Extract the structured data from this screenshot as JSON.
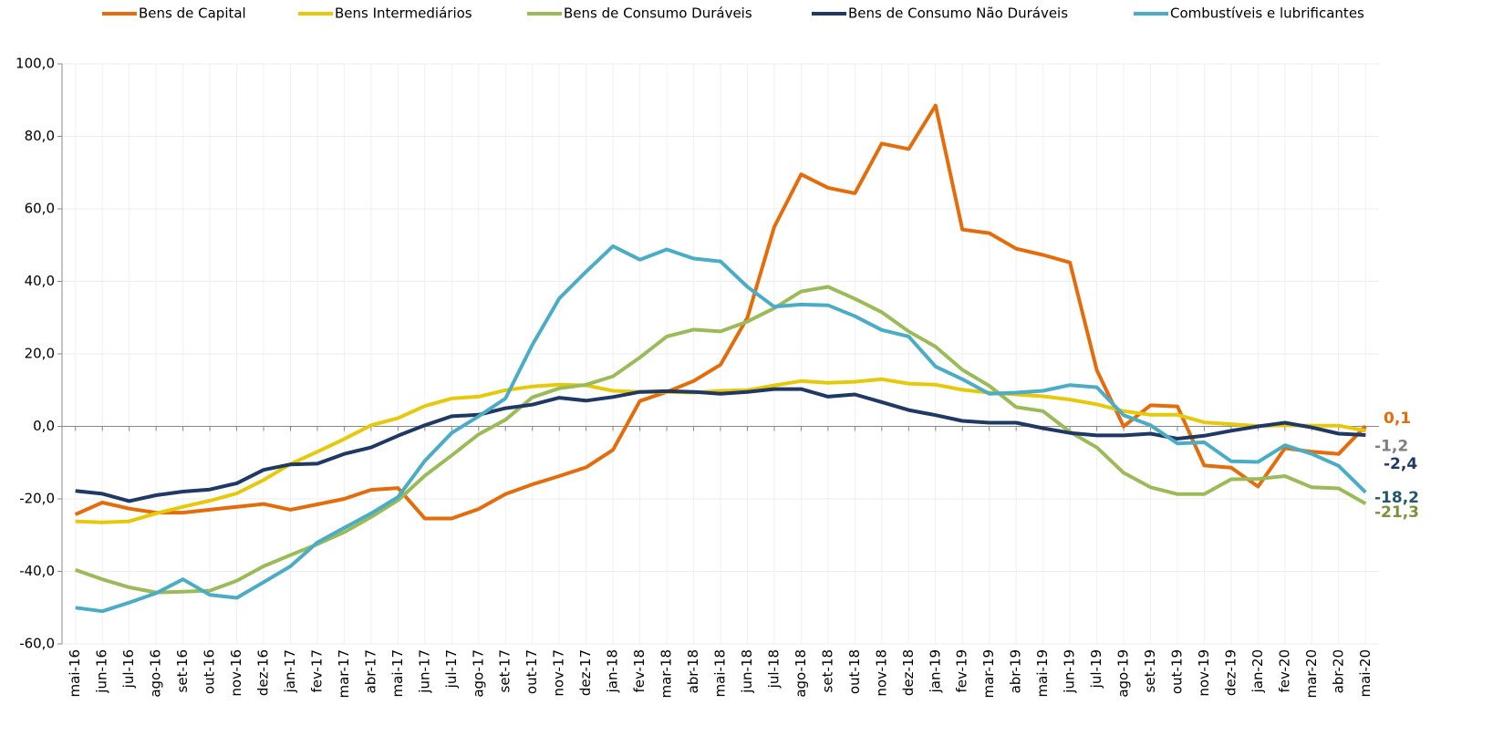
{
  "chart_data": {
    "type": "line",
    "categories": [
      "mai-16",
      "jun-16",
      "jul-16",
      "ago-16",
      "set-16",
      "out-16",
      "nov-16",
      "dez-16",
      "jan-17",
      "fev-17",
      "mar-17",
      "abr-17",
      "mai-17",
      "jun-17",
      "jul-17",
      "ago-17",
      "set-17",
      "out-17",
      "nov-17",
      "dez-17",
      "jan-18",
      "fev-18",
      "mar-18",
      "abr-18",
      "mai-18",
      "jun-18",
      "jul-18",
      "ago-18",
      "set-18",
      "out-18",
      "nov-18",
      "dez-18",
      "jan-19",
      "fev-19",
      "mar-19",
      "abr-19",
      "mai-19",
      "jun-19",
      "jul-19",
      "ago-19",
      "set-19",
      "out-19",
      "nov-19",
      "dez-19",
      "jan-20",
      "fev-20",
      "mar-20",
      "abr-20",
      "mai-20"
    ],
    "series": [
      {
        "name": "Bens de Capital",
        "color": "#e46c0a",
        "label_color": "#e46c0a",
        "values": [
          -24.3,
          -21,
          -22.7,
          -23.8,
          -23.8,
          -23,
          -22.2,
          -21.4,
          -23,
          -21.5,
          -20,
          -17.5,
          -17,
          -25.4,
          -25.4,
          -22.8,
          -18.7,
          -16,
          -13.7,
          -11.3,
          -6.5,
          7,
          9.5,
          12.5,
          17,
          30,
          55,
          69.5,
          65.8,
          64.3,
          78,
          76.5,
          88.5,
          54.3,
          53.3,
          49,
          47.3,
          45.2,
          15.5,
          0,
          5.8,
          5.5,
          -10.8,
          -11.4,
          -16.6,
          -6,
          -7,
          -7.6,
          0.1
        ],
        "value_labels": [
          null,
          null,
          null,
          null,
          null,
          null,
          null,
          null,
          null,
          null,
          null,
          null,
          null,
          null,
          null,
          null,
          null,
          null,
          null,
          null,
          null,
          null,
          null,
          null,
          null,
          null,
          null,
          null,
          null,
          null,
          null,
          null,
          null,
          null,
          null,
          null,
          null,
          null,
          null,
          null,
          null,
          null,
          null,
          null,
          null,
          null,
          null,
          null,
          "0,1"
        ]
      },
      {
        "name": "Bens Intermediários",
        "color": "#e6c90a",
        "label_color": "#7f7f7f",
        "values": [
          -26.2,
          -26.5,
          -26.2,
          -24,
          -22.2,
          -20.5,
          -18.5,
          -14.8,
          -10.4,
          -7,
          -3.5,
          0.3,
          2.3,
          5.6,
          7.7,
          8.2,
          10,
          11,
          11.5,
          11.3,
          9.8,
          9.5,
          9.5,
          9.3,
          9.8,
          10,
          11.3,
          12.5,
          12,
          12.3,
          13,
          11.8,
          11.5,
          10.1,
          9.3,
          8.8,
          8.3,
          7.4,
          6.1,
          4.2,
          3.2,
          3.2,
          1.1,
          0.6,
          0.1,
          0.3,
          0.2,
          0.2,
          -1.2
        ],
        "value_labels": [
          null,
          null,
          null,
          null,
          null,
          null,
          null,
          null,
          null,
          null,
          null,
          null,
          null,
          null,
          null,
          null,
          null,
          null,
          null,
          null,
          null,
          null,
          null,
          null,
          null,
          null,
          null,
          null,
          null,
          null,
          null,
          null,
          null,
          null,
          null,
          null,
          null,
          null,
          null,
          null,
          null,
          null,
          null,
          null,
          null,
          null,
          null,
          null,
          "-1,2"
        ]
      },
      {
        "name": "Bens de Consumo Duráveis",
        "color": "#9bbb59",
        "label_color": "#77933c",
        "values": [
          -39.6,
          -42.2,
          -44.4,
          -45.8,
          -45.6,
          -45.3,
          -42.6,
          -38.6,
          -35.5,
          -32.5,
          -29.2,
          -25,
          -20.4,
          -13.6,
          -8,
          -2.2,
          1.8,
          8,
          10.5,
          11.5,
          13.8,
          19,
          24.8,
          26.7,
          26.2,
          28.9,
          32.6,
          37.2,
          38.5,
          35.2,
          31.5,
          26.2,
          22,
          15.6,
          11.2,
          5.3,
          4.2,
          -1.5,
          -5.8,
          -12.8,
          -16.8,
          -18.7,
          -18.7,
          -14.6,
          -14.5,
          -13.7,
          -16.8,
          -17.1,
          -21.3
        ],
        "value_labels": [
          null,
          null,
          null,
          null,
          null,
          null,
          null,
          null,
          null,
          null,
          null,
          null,
          null,
          null,
          null,
          null,
          null,
          null,
          null,
          null,
          null,
          null,
          null,
          null,
          null,
          null,
          null,
          null,
          null,
          null,
          null,
          null,
          null,
          null,
          null,
          null,
          null,
          null,
          null,
          null,
          null,
          null,
          null,
          null,
          null,
          null,
          null,
          null,
          "-21,3"
        ]
      },
      {
        "name": "Bens de Consumo Não Duráveis",
        "color": "#1f3864",
        "label_color": "#1f3864",
        "values": [
          -17.8,
          -18.6,
          -20.6,
          -19,
          -18,
          -17.4,
          -15.7,
          -12,
          -10.5,
          -10.3,
          -7.6,
          -5.8,
          -2.6,
          0.3,
          2.8,
          3.2,
          5,
          6,
          7.9,
          7.1,
          8.1,
          9.5,
          9.7,
          9.5,
          9,
          9.5,
          10.3,
          10.3,
          8.2,
          8.8,
          6.7,
          4.5,
          3.1,
          1.5,
          1,
          1,
          -0.5,
          -1.8,
          -2.5,
          -2.5,
          -2,
          -3.4,
          -2.6,
          -1.2,
          0,
          1,
          -0.3,
          -2,
          -2.4
        ],
        "value_labels": [
          null,
          null,
          null,
          null,
          null,
          null,
          null,
          null,
          null,
          null,
          null,
          null,
          null,
          null,
          null,
          null,
          null,
          null,
          null,
          null,
          null,
          null,
          null,
          null,
          null,
          null,
          null,
          null,
          null,
          null,
          null,
          null,
          null,
          null,
          null,
          null,
          null,
          null,
          null,
          null,
          null,
          null,
          null,
          null,
          null,
          null,
          null,
          null,
          "-2,4"
        ]
      },
      {
        "name": "Combustíveis e lubrificantes",
        "color": "#4bacc6",
        "label_color": "#215968",
        "values": [
          -50,
          -51,
          -48.6,
          -46,
          -42.2,
          -46.5,
          -47.3,
          -43,
          -38.6,
          -32,
          -28,
          -24,
          -19.5,
          -9.5,
          -1.8,
          2.8,
          7.7,
          22.5,
          35.3,
          42.7,
          49.7,
          46,
          48.8,
          46.3,
          45.5,
          38.5,
          33,
          33.6,
          33.4,
          30.4,
          26.6,
          24.8,
          16.5,
          13,
          9,
          9.3,
          9.8,
          11.4,
          10.8,
          3.1,
          0.3,
          -4.7,
          -4.4,
          -9.6,
          -9.8,
          -5.2,
          -7.6,
          -10.9,
          -18.2
        ],
        "value_labels": [
          null,
          null,
          null,
          null,
          null,
          null,
          null,
          null,
          null,
          null,
          null,
          null,
          null,
          null,
          null,
          null,
          null,
          null,
          null,
          null,
          null,
          null,
          null,
          null,
          null,
          null,
          null,
          null,
          null,
          null,
          null,
          null,
          null,
          null,
          null,
          null,
          null,
          null,
          null,
          null,
          null,
          null,
          null,
          null,
          null,
          null,
          null,
          null,
          "-18,2"
        ]
      }
    ],
    "ylim": [
      -60,
      100
    ],
    "yticks": [
      {
        "value": -60,
        "label": "-60,0"
      },
      {
        "value": -40,
        "label": "-40,0"
      },
      {
        "value": -20,
        "label": "-20,0"
      },
      {
        "value": 0,
        "label": "0,0"
      },
      {
        "value": 20,
        "label": "20,0"
      },
      {
        "value": 40,
        "label": "40,0"
      },
      {
        "value": 60,
        "label": "60,0"
      },
      {
        "value": 80,
        "label": "80,0"
      },
      {
        "value": 100,
        "label": "100,0"
      }
    ],
    "grid": true,
    "legend": "top"
  }
}
